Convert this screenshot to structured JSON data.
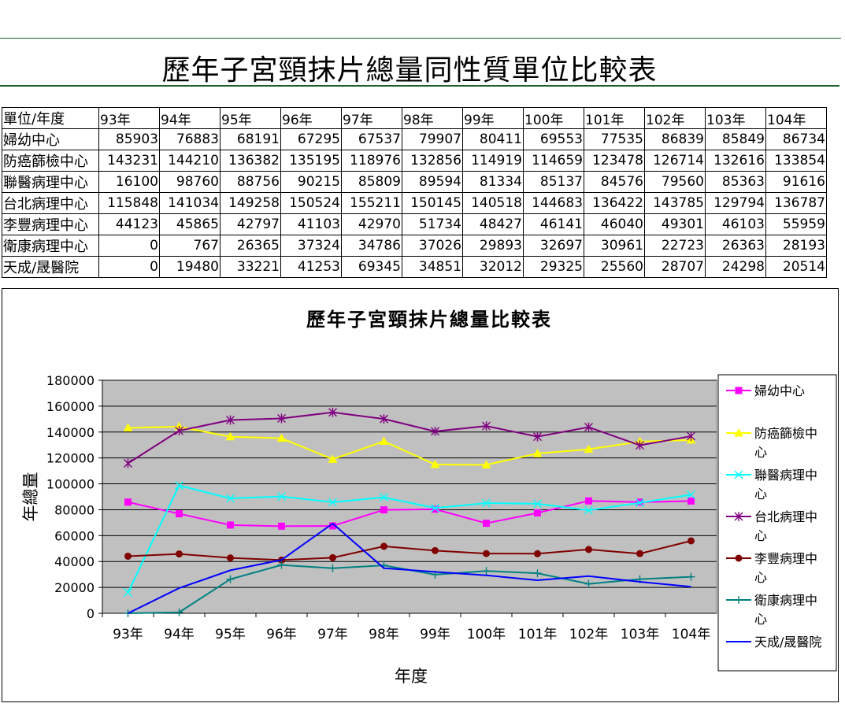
{
  "sheet_title": "歷年子宮頸抹片總量同性質單位比較表",
  "table": {
    "corner": "單位/年度",
    "years": [
      "93年",
      "94年",
      "95年",
      "96年",
      "97年",
      "98年",
      "99年",
      "100年",
      "101年",
      "102年",
      "103年",
      "104年"
    ],
    "rows": [
      {
        "name": "婦幼中心",
        "values": [
          85903,
          76883,
          68191,
          67295,
          67537,
          79907,
          80411,
          69553,
          77535,
          86839,
          85849,
          86734
        ]
      },
      {
        "name": "防癌篩檢中心",
        "values": [
          143231,
          144210,
          136382,
          135195,
          118976,
          132856,
          114919,
          114659,
          123478,
          126714,
          132616,
          133854
        ]
      },
      {
        "name": "聯醫病理中心",
        "values": [
          16100,
          98760,
          88756,
          90215,
          85809,
          89594,
          81334,
          85137,
          84576,
          79560,
          85363,
          91616
        ]
      },
      {
        "name": "台北病理中心",
        "values": [
          115848,
          141034,
          149258,
          150524,
          155211,
          150145,
          140518,
          144683,
          136422,
          143785,
          129794,
          136787
        ]
      },
      {
        "name": "李豐病理中心",
        "values": [
          44123,
          45865,
          42797,
          41103,
          42970,
          51734,
          48427,
          46141,
          46040,
          49301,
          46103,
          55959
        ]
      },
      {
        "name": "衛康病理中心",
        "values": [
          0,
          767,
          26365,
          37324,
          34786,
          37026,
          29893,
          32697,
          30961,
          22723,
          26363,
          28193
        ]
      },
      {
        "name": "天成/晟醫院",
        "values": [
          0,
          19480,
          33221,
          41253,
          69345,
          34851,
          32012,
          29325,
          25560,
          28707,
          24298,
          20514
        ]
      }
    ]
  },
  "chart_data": {
    "type": "line",
    "title": "歷年子宮頸抹片總量比較表",
    "xlabel": "年度",
    "ylabel": "年總量",
    "categories": [
      "93年",
      "94年",
      "95年",
      "96年",
      "97年",
      "98年",
      "99年",
      "100年",
      "101年",
      "102年",
      "103年",
      "104年"
    ],
    "y_ticks": [
      "0",
      "20000",
      "40000",
      "60000",
      "80000",
      "100000",
      "120000",
      "140000",
      "160000",
      "180000"
    ],
    "ylim": [
      0,
      180000
    ],
    "grid": true,
    "plot_background": "#c0c0c0",
    "legend_position": "right",
    "series": [
      {
        "name": "婦幼中心",
        "color": "#ff00ff",
        "marker": "square",
        "values": [
          85903,
          76883,
          68191,
          67295,
          67537,
          79907,
          80411,
          69553,
          77535,
          86839,
          85849,
          86734
        ]
      },
      {
        "name": "防癌篩檢中心",
        "color": "#ffff00",
        "marker": "triangle",
        "values": [
          143231,
          144210,
          136382,
          135195,
          118976,
          132856,
          114919,
          114659,
          123478,
          126714,
          132616,
          133854
        ]
      },
      {
        "name": "聯醫病理中心",
        "color": "#00ffff",
        "marker": "x",
        "values": [
          16100,
          98760,
          88756,
          90215,
          85809,
          89594,
          81334,
          85137,
          84576,
          79560,
          85363,
          91616
        ]
      },
      {
        "name": "台北病理中心",
        "color": "#800080",
        "marker": "star",
        "values": [
          115848,
          141034,
          149258,
          150524,
          155211,
          150145,
          140518,
          144683,
          136422,
          143785,
          129794,
          136787
        ]
      },
      {
        "name": "李豐病理中心",
        "color": "#800000",
        "marker": "circle",
        "values": [
          44123,
          45865,
          42797,
          41103,
          42970,
          51734,
          48427,
          46141,
          46040,
          49301,
          46103,
          55959
        ]
      },
      {
        "name": "衛康病理中心",
        "color": "#008080",
        "marker": "plus",
        "values": [
          0,
          767,
          26365,
          37324,
          34786,
          37026,
          29893,
          32697,
          30961,
          22723,
          26363,
          28193
        ]
      },
      {
        "name": "天成/晟醫院",
        "color": "#0000ff",
        "marker": "none",
        "values": [
          0,
          19480,
          33221,
          41253,
          69345,
          34851,
          32012,
          29325,
          25560,
          28707,
          24298,
          20514
        ]
      }
    ],
    "legend_lines": [
      [
        "婦幼中心"
      ],
      [
        "防癌篩檢中",
        "心"
      ],
      [
        "聯醫病理中",
        "心"
      ],
      [
        "台北病理中",
        "心"
      ],
      [
        "李豐病理中",
        "心"
      ],
      [
        "衛康病理中",
        "心"
      ],
      [
        "天成/晟醫院"
      ]
    ]
  }
}
